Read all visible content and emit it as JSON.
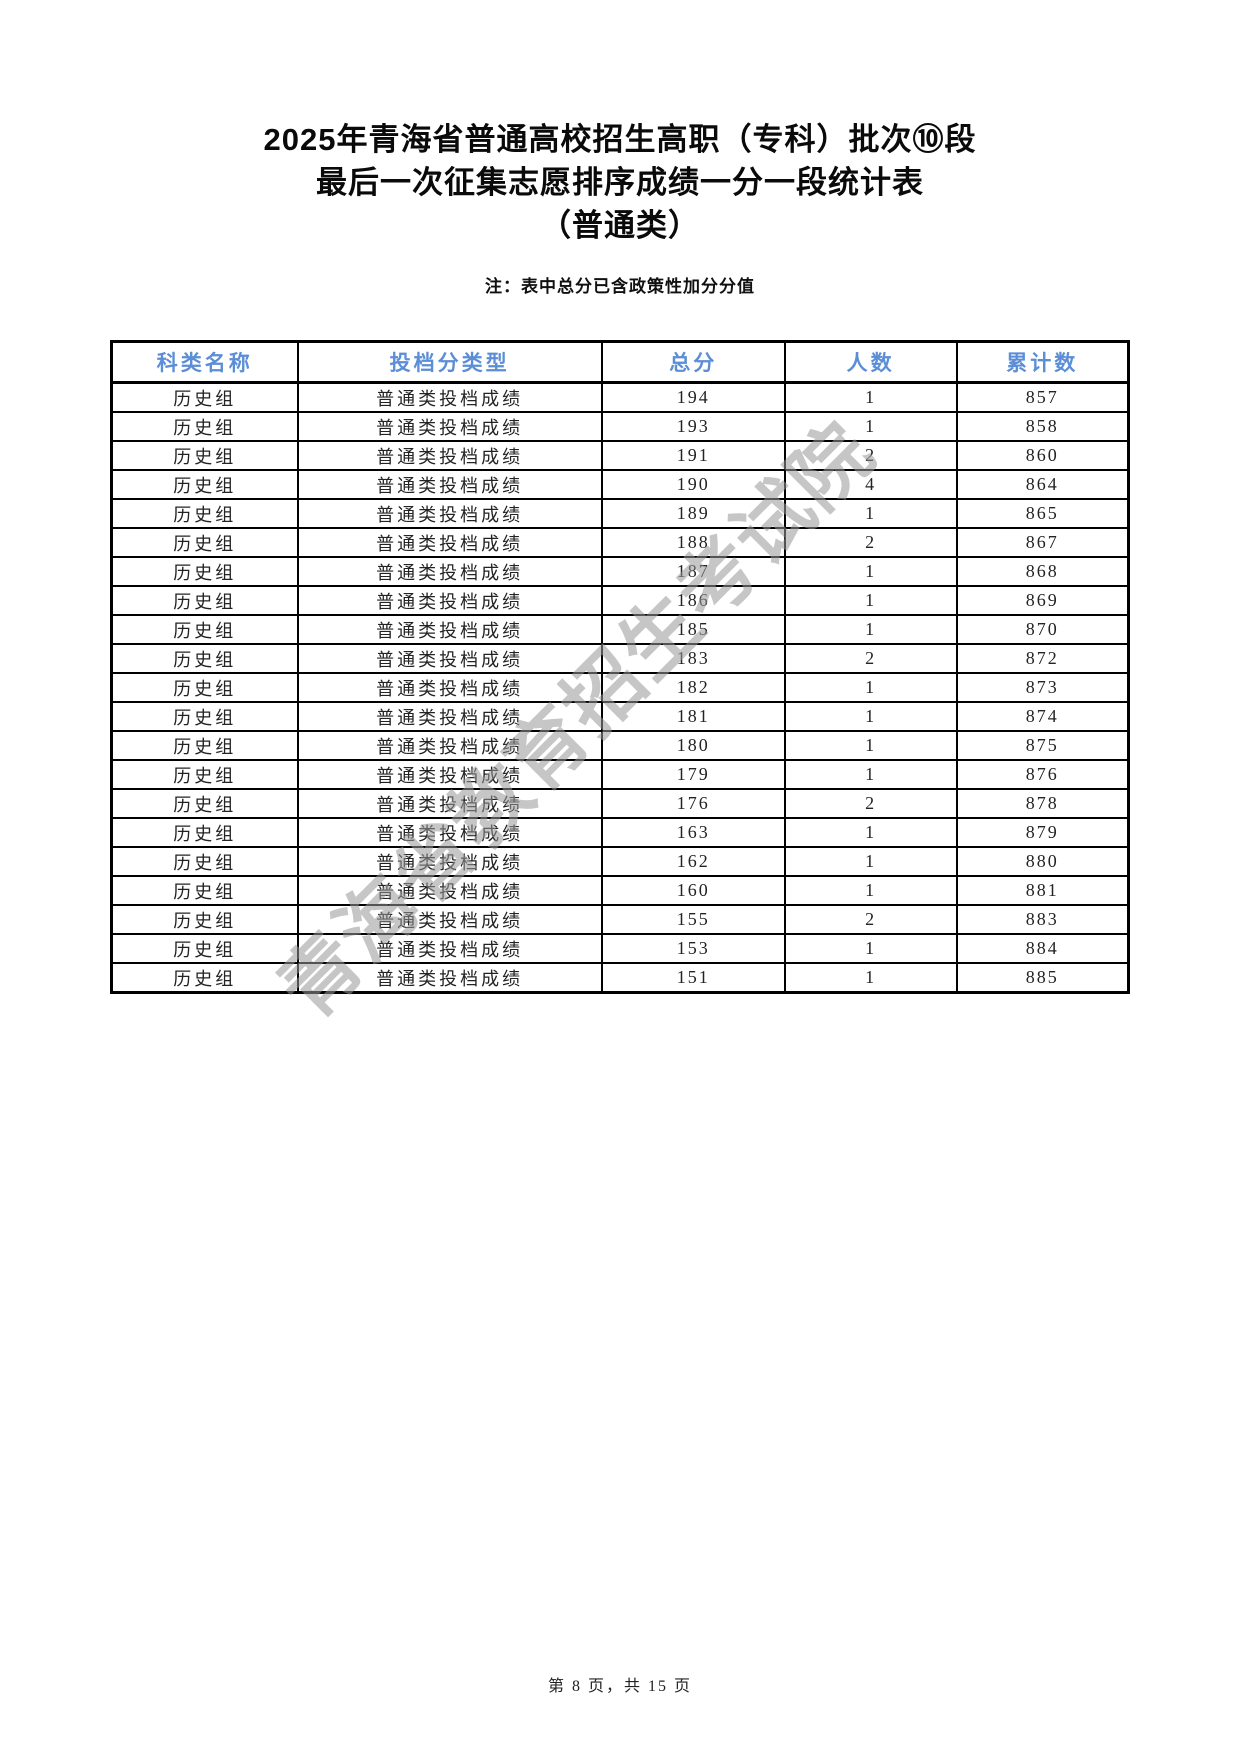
{
  "page": {
    "title_lines": [
      "2025年青海省普通高校招生高职（专科）批次⑩段",
      "最后一次征集志愿排序成绩一分一段统计表",
      "（普通类）"
    ],
    "note": "注：表中总分已含政策性加分分值",
    "watermark": "青海省教育招生考试院",
    "footer": "第 8 页，共 15 页"
  },
  "colors": {
    "header_text": "#5b8ed6",
    "body_text": "#232323",
    "border": "#000000",
    "watermark": "#999999"
  },
  "table": {
    "columns": [
      "科类名称",
      "投档分类型",
      "总分",
      "人数",
      "累计数"
    ],
    "rows": [
      {
        "category": "历史组",
        "score_type": "普通类投档成绩",
        "total_score": "194",
        "count": "1",
        "cumulative": "857"
      },
      {
        "category": "历史组",
        "score_type": "普通类投档成绩",
        "total_score": "193",
        "count": "1",
        "cumulative": "858"
      },
      {
        "category": "历史组",
        "score_type": "普通类投档成绩",
        "total_score": "191",
        "count": "2",
        "cumulative": "860"
      },
      {
        "category": "历史组",
        "score_type": "普通类投档成绩",
        "total_score": "190",
        "count": "4",
        "cumulative": "864"
      },
      {
        "category": "历史组",
        "score_type": "普通类投档成绩",
        "total_score": "189",
        "count": "1",
        "cumulative": "865"
      },
      {
        "category": "历史组",
        "score_type": "普通类投档成绩",
        "total_score": "188",
        "count": "2",
        "cumulative": "867"
      },
      {
        "category": "历史组",
        "score_type": "普通类投档成绩",
        "total_score": "187",
        "count": "1",
        "cumulative": "868"
      },
      {
        "category": "历史组",
        "score_type": "普通类投档成绩",
        "total_score": "186",
        "count": "1",
        "cumulative": "869"
      },
      {
        "category": "历史组",
        "score_type": "普通类投档成绩",
        "total_score": "185",
        "count": "1",
        "cumulative": "870"
      },
      {
        "category": "历史组",
        "score_type": "普通类投档成绩",
        "total_score": "183",
        "count": "2",
        "cumulative": "872"
      },
      {
        "category": "历史组",
        "score_type": "普通类投档成绩",
        "total_score": "182",
        "count": "1",
        "cumulative": "873"
      },
      {
        "category": "历史组",
        "score_type": "普通类投档成绩",
        "total_score": "181",
        "count": "1",
        "cumulative": "874"
      },
      {
        "category": "历史组",
        "score_type": "普通类投档成绩",
        "total_score": "180",
        "count": "1",
        "cumulative": "875"
      },
      {
        "category": "历史组",
        "score_type": "普通类投档成绩",
        "total_score": "179",
        "count": "1",
        "cumulative": "876"
      },
      {
        "category": "历史组",
        "score_type": "普通类投档成绩",
        "total_score": "176",
        "count": "2",
        "cumulative": "878"
      },
      {
        "category": "历史组",
        "score_type": "普通类投档成绩",
        "total_score": "163",
        "count": "1",
        "cumulative": "879"
      },
      {
        "category": "历史组",
        "score_type": "普通类投档成绩",
        "total_score": "162",
        "count": "1",
        "cumulative": "880"
      },
      {
        "category": "历史组",
        "score_type": "普通类投档成绩",
        "total_score": "160",
        "count": "1",
        "cumulative": "881"
      },
      {
        "category": "历史组",
        "score_type": "普通类投档成绩",
        "total_score": "155",
        "count": "2",
        "cumulative": "883"
      },
      {
        "category": "历史组",
        "score_type": "普通类投档成绩",
        "total_score": "153",
        "count": "1",
        "cumulative": "884"
      },
      {
        "category": "历史组",
        "score_type": "普通类投档成绩",
        "total_score": "151",
        "count": "1",
        "cumulative": "885"
      }
    ]
  }
}
